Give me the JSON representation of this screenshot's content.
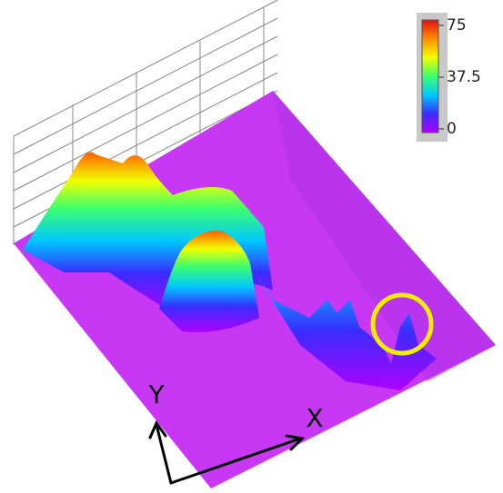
{
  "chart_data": {
    "type": "surface3d",
    "x_label": "X",
    "y_label": "Y",
    "colorbar": {
      "lim": [
        0,
        75
      ],
      "ticks": [
        0,
        37.5,
        75
      ],
      "colors": [
        "#b000ff",
        "#3a2cff",
        "#00c8ff",
        "#3cff6e",
        "#f0ff00",
        "#ff8c00",
        "#e01010"
      ]
    }
  }
}
